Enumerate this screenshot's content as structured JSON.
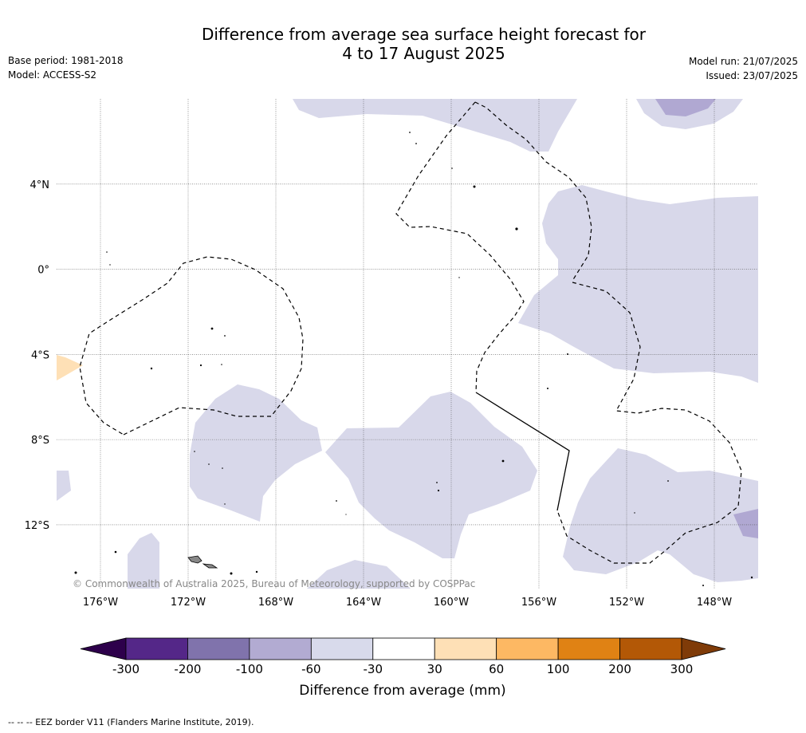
{
  "header": {
    "title_line1": "Difference from average sea surface height forecast for",
    "title_line2": "4 to 17 August 2025",
    "base_period": "Base period: 1981-2018",
    "model": "Model: ACCESS-S2",
    "model_run": "Model run: 21/07/2025",
    "issued": "Issued: 23/07/2025"
  },
  "map": {
    "extent": {
      "lon_min": -178.0,
      "lon_max": -146.0,
      "lat_min": -15.0,
      "lat_max": 8.0
    },
    "lat_labels": [
      {
        "lat": 4,
        "label": "4°N"
      },
      {
        "lat": 0,
        "label": "0°"
      },
      {
        "lat": -4,
        "label": "4°S"
      },
      {
        "lat": -8,
        "label": "8°S"
      },
      {
        "lat": -12,
        "label": "12°S"
      }
    ],
    "lon_labels": [
      {
        "lon": -176,
        "label": "176°W"
      },
      {
        "lon": -172,
        "label": "172°W"
      },
      {
        "lon": -168,
        "label": "168°W"
      },
      {
        "lon": -164,
        "label": "164°W"
      },
      {
        "lon": -160,
        "label": "160°W"
      },
      {
        "lon": -156,
        "label": "156°W"
      },
      {
        "lon": -152,
        "label": "152°W"
      },
      {
        "lon": -148,
        "label": "148°W"
      }
    ],
    "copyright": "© Commonwealth of Australia 2025, Bureau of Meteorology, supported by COSPPac",
    "colors": {
      "light_purple": "#d8d8ea",
      "mid_purple": "#b0a8d2",
      "light_orange": "#fee0b6",
      "land": "#888888",
      "eez": "#000000",
      "grid": "#555555"
    }
  },
  "colorbar": {
    "label": "Difference from average (mm)",
    "ticks": [
      "-300",
      "-200",
      "-100",
      "-60",
      "-30",
      "30",
      "60",
      "100",
      "200",
      "300"
    ],
    "colors": [
      "#542788",
      "#8073ac",
      "#b2abd2",
      "#d8daeb",
      "#ffffff",
      "#fee0b6",
      "#fdb863",
      "#e08214",
      "#b35806"
    ],
    "under_color": "#2d004b",
    "over_color": "#7f3b08"
  },
  "footnote": "--  --  -- EEZ border V11 (Flanders Marine Institute, 2019)."
}
